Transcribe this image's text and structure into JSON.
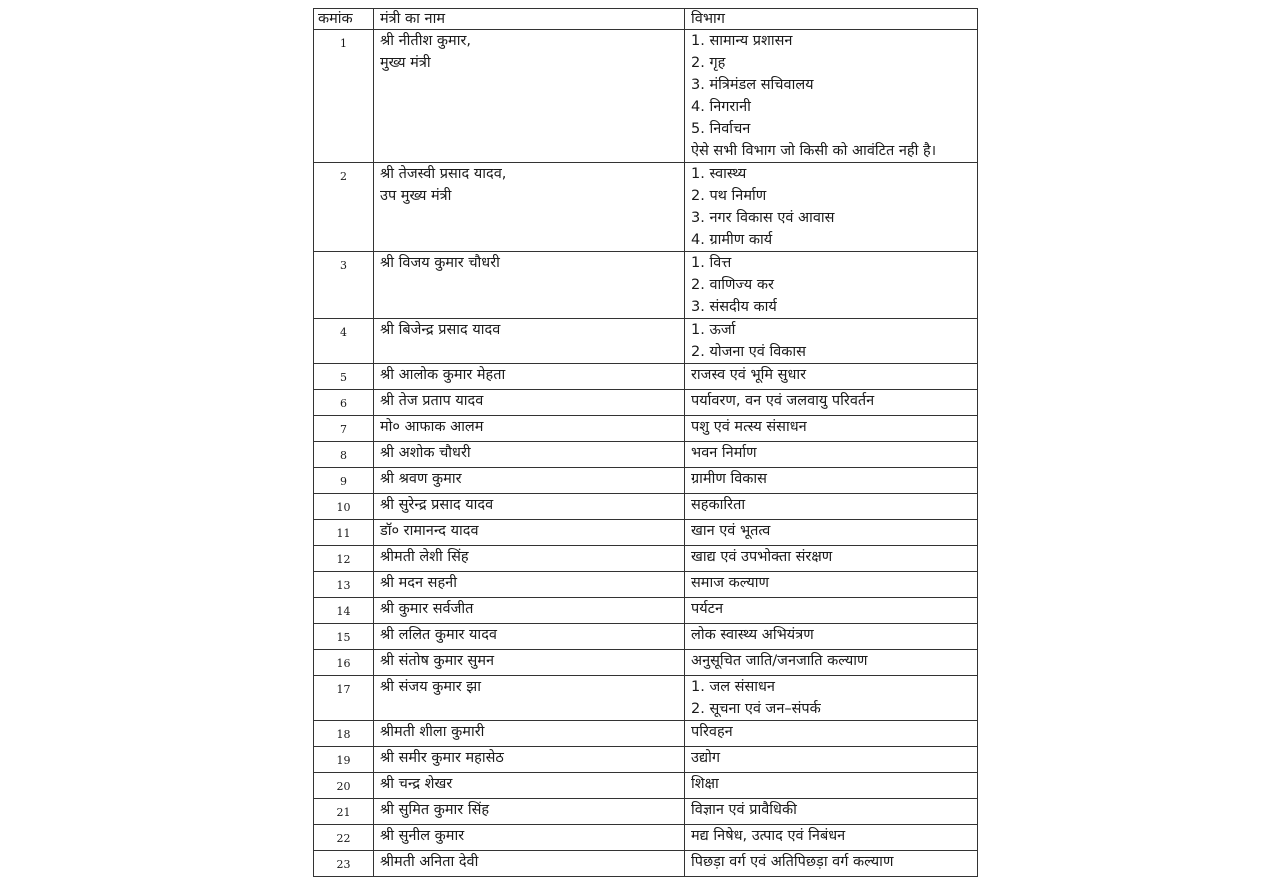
{
  "table": {
    "header": [
      "कमांक",
      "मंत्री का नाम",
      "विभाग"
    ],
    "rows": [
      {
        "number": "1",
        "name": [
          "श्री नीतीश कुमार,",
          "मुख्य मंत्री"
        ],
        "departments": [
          "1. सामान्य प्रशासन",
          "2. गृह",
          "3. मंत्रिमंडल सचिवालय",
          "4. निगरानी",
          "5. निर्वाचन",
          "ऐसे सभी विभाग जो किसी को आवंटित नही है।"
        ]
      },
      {
        "number": "2",
        "name": [
          "श्री तेजस्वी प्रसाद यादव,",
          "उप मुख्य मंत्री"
        ],
        "departments": [
          "1. स्वास्थ्य",
          "2. पथ निर्माण",
          "3. नगर विकास एवं आवास",
          "4. ग्रामीण कार्य"
        ]
      },
      {
        "number": "3",
        "name": [
          "श्री विजय कुमार चौधरी"
        ],
        "departments": [
          "1. वित्त",
          "2. वाणिज्य कर",
          "3. संसदीय कार्य"
        ]
      },
      {
        "number": "4",
        "name": [
          "श्री बिजेन्द्र प्रसाद यादव"
        ],
        "departments": [
          "1. ऊर्जा",
          "2. योजना एवं विकास"
        ]
      },
      {
        "number": "5",
        "name": [
          "श्री आलोक कुमार मेहता"
        ],
        "departments": [
          "राजस्व एवं भूमि सुधार"
        ]
      },
      {
        "number": "6",
        "name": [
          "श्री तेज प्रताप यादव"
        ],
        "departments": [
          "पर्यावरण, वन एवं जलवायु परिवर्तन"
        ]
      },
      {
        "number": "7",
        "name": [
          "मो० आफाक आलम"
        ],
        "departments": [
          "पशु एवं मत्स्य संसाधन"
        ]
      },
      {
        "number": "8",
        "name": [
          "श्री अशोक चौधरी"
        ],
        "departments": [
          "भवन निर्माण"
        ]
      },
      {
        "number": "9",
        "name": [
          "श्री श्रवण कुमार"
        ],
        "departments": [
          "ग्रामीण विकास"
        ]
      },
      {
        "number": "10",
        "name": [
          "श्री सुरेन्द्र प्रसाद यादव"
        ],
        "departments": [
          "सहकारिता"
        ]
      },
      {
        "number": "11",
        "name": [
          "डॉ० रामानन्द यादव"
        ],
        "departments": [
          "खान एवं भूतत्व"
        ]
      },
      {
        "number": "12",
        "name": [
          "श्रीमती लेशी सिंह"
        ],
        "departments": [
          "खाद्य एवं उपभोक्ता संरक्षण"
        ]
      },
      {
        "number": "13",
        "name": [
          "श्री मदन सहनी"
        ],
        "departments": [
          "समाज कल्याण"
        ]
      },
      {
        "number": "14",
        "name": [
          "श्री कुमार सर्वजीत"
        ],
        "departments": [
          "पर्यटन"
        ]
      },
      {
        "number": "15",
        "name": [
          "श्री ललित कुमार यादव"
        ],
        "departments": [
          "लोक स्वास्थ्य अभियंत्रण"
        ]
      },
      {
        "number": "16",
        "name": [
          "श्री संतोष कुमार सुमन"
        ],
        "departments": [
          "अनुसूचित जाति/जनजाति कल्याण"
        ]
      },
      {
        "number": "17",
        "name": [
          "श्री संजय कुमार झा"
        ],
        "departments": [
          "1. जल संसाधन",
          "2. सूचना एवं जन–संपर्क"
        ]
      },
      {
        "number": "18",
        "name": [
          "श्रीमती शीला कुमारी"
        ],
        "departments": [
          "परिवहन"
        ]
      },
      {
        "number": "19",
        "name": [
          "श्री समीर कुमार महासेठ"
        ],
        "departments": [
          "उद्योग"
        ]
      },
      {
        "number": "20",
        "name": [
          "श्री चन्द्र शेखर"
        ],
        "departments": [
          "शिक्षा"
        ]
      },
      {
        "number": "21",
        "name": [
          "श्री सुमित कुमार सिंह"
        ],
        "departments": [
          "विज्ञान एवं प्रावैधिकी"
        ]
      },
      {
        "number": "22",
        "name": [
          "श्री सुनील कुमार"
        ],
        "departments": [
          "मद्य निषेध, उत्पाद एवं निबंधन"
        ]
      },
      {
        "number": "23",
        "name": [
          "श्रीमती अनिता देवी"
        ],
        "departments": [
          "पिछड़ा वर्ग एवं अतिपिछड़ा वर्ग कल्याण"
        ]
      }
    ]
  }
}
